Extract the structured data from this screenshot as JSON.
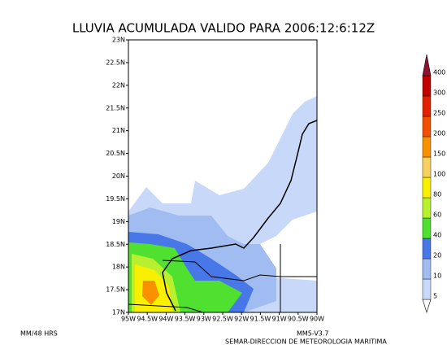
{
  "title": "LLUVIA ACUMULADA VALIDO PARA 2006:12:6:12Z",
  "map": {
    "lat_labels": [
      "17N",
      "17.5N",
      "18N",
      "18.5N",
      "19N",
      "19.5N",
      "20N",
      "20.5N",
      "21N",
      "21.5N",
      "22N",
      "22.5N",
      "23N"
    ],
    "lon_labels": [
      "95W",
      "94.5W",
      "94W",
      "93.5W",
      "93W",
      "92.5W",
      "92W",
      "91.5W",
      "91W",
      "90.5W",
      "90W"
    ]
  },
  "colorbar": {
    "levels": [
      5,
      10,
      20,
      40,
      60,
      80,
      100,
      150,
      200,
      250,
      300,
      400
    ],
    "colors": [
      "#ffffff",
      "#c8d8f8",
      "#a0bcf0",
      "#4878e8",
      "#50e030",
      "#b8f030",
      "#f8f000",
      "#f8d060",
      "#f89000",
      "#f05000",
      "#e02000",
      "#c00000",
      "#901030"
    ]
  },
  "footer": {
    "left": "MM/48 HRS",
    "model": "MM5-V3.7",
    "credit": "SEMAR-DIRECCION DE METEOROLOGIA MARITIMA"
  }
}
